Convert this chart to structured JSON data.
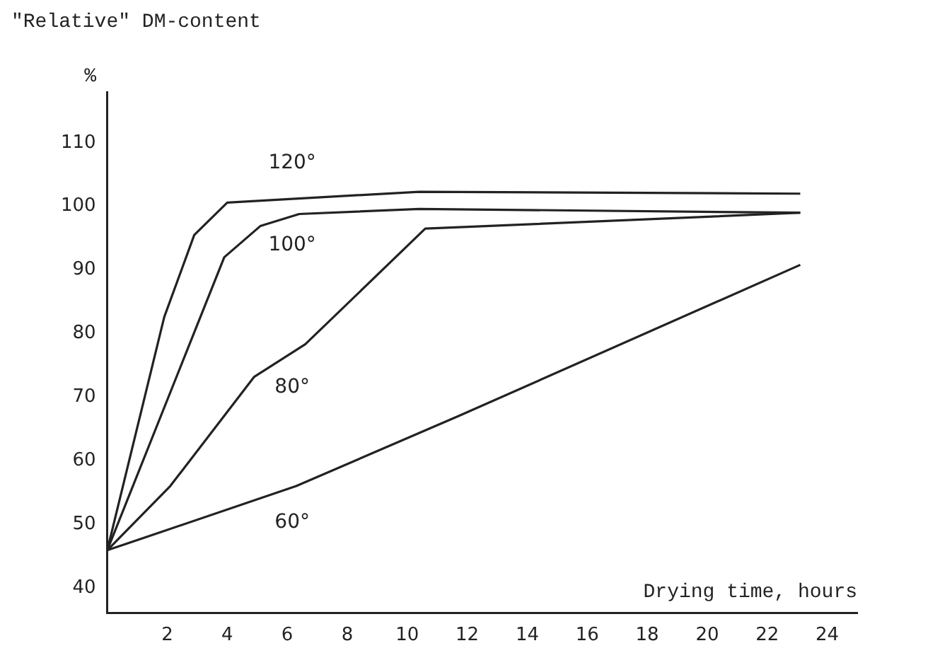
{
  "chart_data": {
    "type": "line",
    "title": "\"Relative\" DM-content",
    "ylabel": "%",
    "xlabel": "Drying time, hours",
    "xlim": [
      0,
      25
    ],
    "xticks": [
      2,
      4,
      6,
      8,
      10,
      12,
      14,
      16,
      18,
      20,
      22,
      24
    ],
    "ylim": [
      36,
      118
    ],
    "yticks": [
      40,
      50,
      60,
      70,
      80,
      90,
      100,
      110
    ],
    "grid": false,
    "legend": false,
    "marker": "none",
    "line_style": "solid",
    "series": [
      {
        "name": "120°",
        "color": "#222222",
        "x": [
          0,
          1.9,
          2.9,
          4.0,
          10.4,
          23.1
        ],
        "values": [
          45.9,
          82.6,
          95.5,
          100.6,
          102.3,
          102
        ]
      },
      {
        "name": "100°",
        "color": "#222222",
        "x": [
          0,
          3.9,
          5.1,
          6.4,
          10.4,
          23.1
        ],
        "values": [
          45.9,
          92.0,
          96.9,
          98.8,
          99.6,
          99
        ]
      },
      {
        "name": "80°",
        "color": "#222222",
        "x": [
          0,
          2.1,
          4.9,
          6.6,
          10.6,
          23.1
        ],
        "values": [
          45.9,
          56,
          73.2,
          78.3,
          96.5,
          99
        ]
      },
      {
        "name": "60°",
        "color": "#222222",
        "x": [
          0,
          6.3,
          11.7,
          23.1
        ],
        "values": [
          45.9,
          56,
          67.0,
          90.8
        ]
      }
    ]
  }
}
